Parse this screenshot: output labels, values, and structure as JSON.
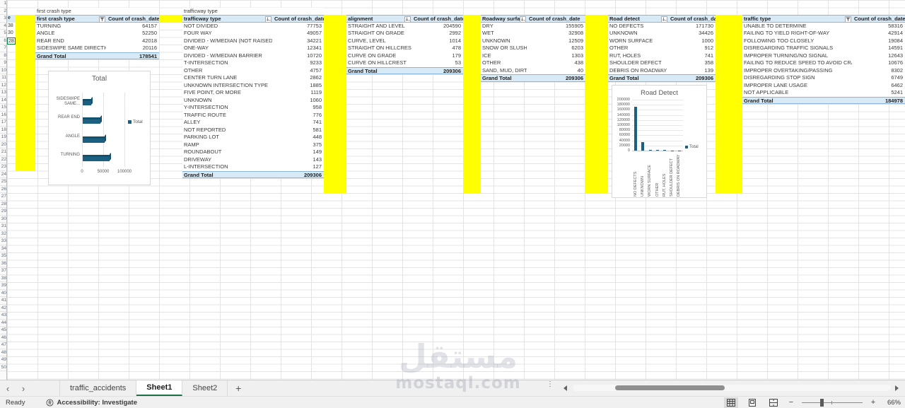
{
  "sheet": {
    "row_count": 50,
    "row2_label_1": "first crash type",
    "row2_label_2": "trafficway type",
    "partial_column": {
      "header": "e",
      "values": [
        "38",
        "30",
        "28"
      ]
    }
  },
  "pivot_tables": [
    {
      "title": "first crash type",
      "header": "first crash type",
      "value_header": "Count of crash_date",
      "icon": "filter",
      "rows": [
        [
          "TURNING",
          "64157"
        ],
        [
          "ANGLE",
          "52250"
        ],
        [
          "REAR END",
          "42018"
        ],
        [
          "SIDESWIPE SAME DIRECTION",
          "20116"
        ]
      ],
      "grand_total": [
        "Grand Total",
        "178541"
      ]
    },
    {
      "title": "trafficway type",
      "header": "trafficway type",
      "value_header": "Count of crash_date",
      "icon": "sort",
      "rows": [
        [
          "NOT DIVIDED",
          "77753"
        ],
        [
          "FOUR WAY",
          "49057"
        ],
        [
          "DIVIDED - W/MEDIAN (NOT RAISED)",
          "34221"
        ],
        [
          "ONE-WAY",
          "12341"
        ],
        [
          "DIVIDED - W/MEDIAN BARRIER",
          "10720"
        ],
        [
          "T-INTERSECTION",
          "9233"
        ],
        [
          "OTHER",
          "4757"
        ],
        [
          "CENTER TURN LANE",
          "2862"
        ],
        [
          "UNKNOWN INTERSECTION TYPE",
          "1885"
        ],
        [
          "FIVE POINT, OR MORE",
          "1119"
        ],
        [
          "UNKNOWN",
          "1060"
        ],
        [
          "Y-INTERSECTION",
          "958"
        ],
        [
          "TRAFFIC ROUTE",
          "776"
        ],
        [
          "ALLEY",
          "741"
        ],
        [
          "NOT REPORTED",
          "581"
        ],
        [
          "PARKING LOT",
          "448"
        ],
        [
          "RAMP",
          "375"
        ],
        [
          "ROUNDABOUT",
          "149"
        ],
        [
          "DRIVEWAY",
          "143"
        ],
        [
          "L-INTERSECTION",
          "127"
        ]
      ],
      "grand_total": [
        "Grand Total",
        "209306"
      ]
    },
    {
      "title": "",
      "header": "alignment",
      "value_header": "Count of crash_date",
      "icon": "sort",
      "rows": [
        [
          "STRAIGHT AND LEVEL",
          "204590"
        ],
        [
          "STRAIGHT ON GRADE",
          "2992"
        ],
        [
          "CURVE, LEVEL",
          "1014"
        ],
        [
          "STRAIGHT ON HILLCREST",
          "478"
        ],
        [
          "CURVE ON GRADE",
          "179"
        ],
        [
          "CURVE ON HILLCREST",
          "53"
        ]
      ],
      "grand_total": [
        "Grand Total",
        "209306"
      ]
    },
    {
      "title": "",
      "header": "Roadway surfa",
      "value_header": "Count of crash_date",
      "icon": "sort",
      "rows": [
        [
          "DRY",
          "155905"
        ],
        [
          "WET",
          "32908"
        ],
        [
          "UNKNOWN",
          "12509"
        ],
        [
          "SNOW OR SLUSH",
          "6203"
        ],
        [
          "ICE",
          "1303"
        ],
        [
          "OTHER",
          "438"
        ],
        [
          "SAND, MUD, DIRT",
          "40"
        ]
      ],
      "grand_total": [
        "Grand Total",
        "209306"
      ]
    },
    {
      "title": "",
      "header": "Road detect",
      "value_header": "Count of crash_date",
      "icon": "sort",
      "rows": [
        [
          "NO DEFECTS",
          "171730"
        ],
        [
          "UNKNOWN",
          "34426"
        ],
        [
          "WORN SURFACE",
          "1000"
        ],
        [
          "OTHER",
          "912"
        ],
        [
          "RUT, HOLES",
          "741"
        ],
        [
          "SHOULDER DEFECT",
          "358"
        ],
        [
          "DEBRIS ON ROADWAY",
          "139"
        ]
      ],
      "grand_total": [
        "Grand Total",
        "209306"
      ]
    },
    {
      "title": "",
      "header": "traffic type",
      "value_header": "Count of crash_date",
      "icon": "filter",
      "rows": [
        [
          "UNABLE TO DETERMINE",
          "58316"
        ],
        [
          "FAILING TO YIELD RIGHT-OF-WAY",
          "42914"
        ],
        [
          "FOLLOWING TOO CLOSELY",
          "19084"
        ],
        [
          "DISREGARDING TRAFFIC SIGNALS",
          "14591"
        ],
        [
          "IMPROPER TURNING/NO SIGNAL",
          "12643"
        ],
        [
          "FAILING TO REDUCE SPEED TO AVOID CRASH",
          "10676"
        ],
        [
          "IMPROPER OVERTAKING/PASSING",
          "8302"
        ],
        [
          "DISREGARDING STOP SIGN",
          "6749"
        ],
        [
          "IMPROPER LANE USAGE",
          "6462"
        ],
        [
          "NOT APPLICABLE",
          "5241"
        ]
      ],
      "grand_total": [
        "Grand Total",
        "184978"
      ]
    }
  ],
  "chart_data": [
    {
      "type": "bar",
      "orientation": "horizontal",
      "style": "3d",
      "title": "Total",
      "categories": [
        "TURNING",
        "ANGLE",
        "REAR END",
        "SIDESWIPE SAME..."
      ],
      "values": [
        64157,
        52250,
        42018,
        20116
      ],
      "xlim": [
        0,
        100000
      ],
      "xticks": [
        "0",
        "50000",
        "100000"
      ],
      "legend": [
        "Total"
      ],
      "legend_position": "right",
      "bar_color": "#1b6080"
    },
    {
      "type": "bar",
      "orientation": "vertical",
      "title": "Road Detect",
      "categories": [
        "NO DEFECTS",
        "UNKNOWN",
        "WORN SURFACE",
        "OTHER",
        "RUT, HOLES",
        "SHOULDER DEFECT",
        "DEBRIS ON ROADWAY"
      ],
      "values": [
        171730,
        34426,
        1000,
        912,
        741,
        358,
        139
      ],
      "ylim": [
        0,
        200000
      ],
      "ytick_step": 20000,
      "legend": [
        "Total"
      ],
      "legend_position": "right",
      "bar_color": "#1b6080"
    }
  ],
  "tabs": {
    "items": [
      {
        "label": "traffic_accidents",
        "active": false
      },
      {
        "label": "Sheet1",
        "active": true
      },
      {
        "label": "Sheet2",
        "active": false
      }
    ],
    "add_label": "+"
  },
  "status_bar": {
    "ready": "Ready",
    "accessibility": "Accessibility: Investigate",
    "zoom": "66%"
  },
  "watermark": {
    "arabic": "مستقل",
    "latin": "mostaql.com"
  },
  "colors": {
    "accent_teal": "#1b6080",
    "highlight_yellow": "#ffff00",
    "pivot_header_blue": "#d9eaf7",
    "active_tab_green": "#1e7145"
  }
}
